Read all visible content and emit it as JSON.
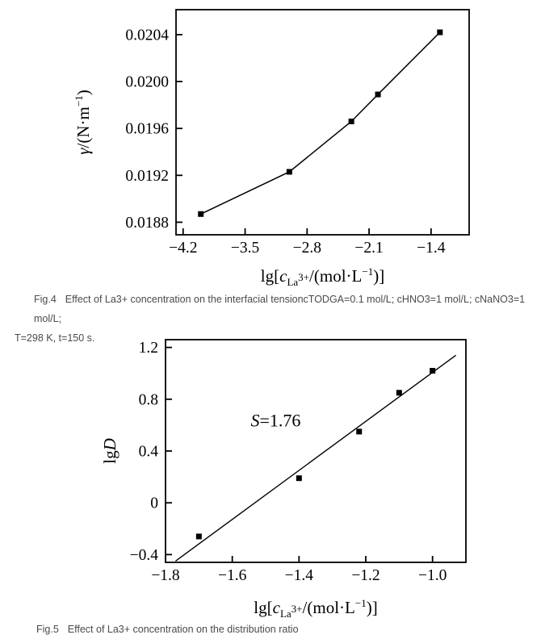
{
  "page": {
    "background_color": "#ffffff",
    "chart_ink_color": "#000000",
    "caption_text_color": "#4a4a4a"
  },
  "captions": {
    "fig4": {
      "label": "Fig.4",
      "text": "Effect of La3+ concentration on the interfacial tensioncTODGA=0.1 mol/L; cHNO3=1 mol/L; cNaNO3=1 mol/L;",
      "line2": "T=298 K, t=150 s."
    },
    "fig5": {
      "label": "Fig.5",
      "text": "Effect of La3+ concentration on the distribution ratio"
    }
  },
  "chart_data": [
    {
      "id": "fig4",
      "type": "line",
      "title": "",
      "xlabel": "lg[c_(La3+)/(mol·L^(−1))]",
      "ylabel": "γ/(N·m^(−1))",
      "x": [
        -4.0,
        -3.0,
        -2.3,
        -2.0,
        -1.3
      ],
      "y": [
        0.01887,
        0.01923,
        0.01966,
        0.01989,
        0.02042
      ],
      "connect": true,
      "marker": "square",
      "grid": false,
      "legend": null,
      "xlim": [
        -4.28,
        -0.97
      ],
      "ylim": [
        0.018693,
        0.020613
      ],
      "xticks": [
        -4.2,
        -3.5,
        -2.8,
        -2.1,
        -1.4
      ],
      "xtick_labels": [
        "−4.2",
        "−3.5",
        "−2.8",
        "−2.1",
        "−1.4"
      ],
      "yticks": [
        0.0188,
        0.0192,
        0.0196,
        0.02,
        0.0204
      ],
      "ytick_labels": [
        "0.0188",
        "0.0192",
        "0.0196",
        "0.0200",
        "0.0204"
      ],
      "xlabel_segments": [
        {
          "t": "lg["
        },
        {
          "t": "c",
          "i": true
        },
        {
          "t": "La",
          "s": 0.62,
          "o": 5
        },
        {
          "t": "3+",
          "s": 0.62,
          "o": -1
        },
        {
          "t": "/(mol·L"
        },
        {
          "t": "−1",
          "s": 0.62,
          "o": -8
        },
        {
          "t": ")]"
        }
      ],
      "ylabel_segments": [
        {
          "t": "γ",
          "i": true
        },
        {
          "t": "/(N·m"
        },
        {
          "t": "−1",
          "s": 0.62,
          "o": -8
        },
        {
          "t": ")"
        }
      ]
    },
    {
      "id": "fig5",
      "type": "scatter",
      "title": "",
      "xlabel": "lg[c_(La3+)/(mol·L^(−1))]",
      "ylabel": "lgD",
      "x": [
        -1.7,
        -1.4,
        -1.22,
        -1.1,
        -1.0
      ],
      "y": [
        -0.26,
        0.19,
        0.55,
        0.85,
        1.02
      ],
      "connect": false,
      "marker": "square",
      "grid": false,
      "legend": null,
      "fit_line": {
        "x1": -1.77,
        "y1": -0.45,
        "x2": -0.93,
        "y2": 1.14,
        "slope_label": "S=1.76"
      },
      "annotation": {
        "x": -1.47,
        "y": 0.59,
        "text": "S=1.76",
        "segments": [
          {
            "t": "S",
            "i": true
          },
          {
            "t": "=1.76"
          }
        ]
      },
      "xlim": [
        -1.8,
        -0.9
      ],
      "ylim": [
        -0.46,
        1.26
      ],
      "xticks": [
        -1.8,
        -1.6,
        -1.4,
        -1.2,
        -1.0
      ],
      "xtick_labels": [
        "−1.8",
        "−1.6",
        "−1.4",
        "−1.2",
        "−1.0"
      ],
      "yticks": [
        -0.4,
        0,
        0.4,
        0.8,
        1.2
      ],
      "ytick_labels": [
        "−0.4",
        "0",
        "0.4",
        "0.8",
        "1.2"
      ],
      "xlabel_segments": [
        {
          "t": "lg["
        },
        {
          "t": "c",
          "i": true
        },
        {
          "t": "La",
          "s": 0.62,
          "o": 5
        },
        {
          "t": "3+",
          "s": 0.62,
          "o": -1
        },
        {
          "t": "/(mol·L"
        },
        {
          "t": "−1",
          "s": 0.62,
          "o": -8
        },
        {
          "t": ")]"
        }
      ],
      "ylabel_segments": [
        {
          "t": "lg"
        },
        {
          "t": "D",
          "i": true
        }
      ]
    }
  ]
}
